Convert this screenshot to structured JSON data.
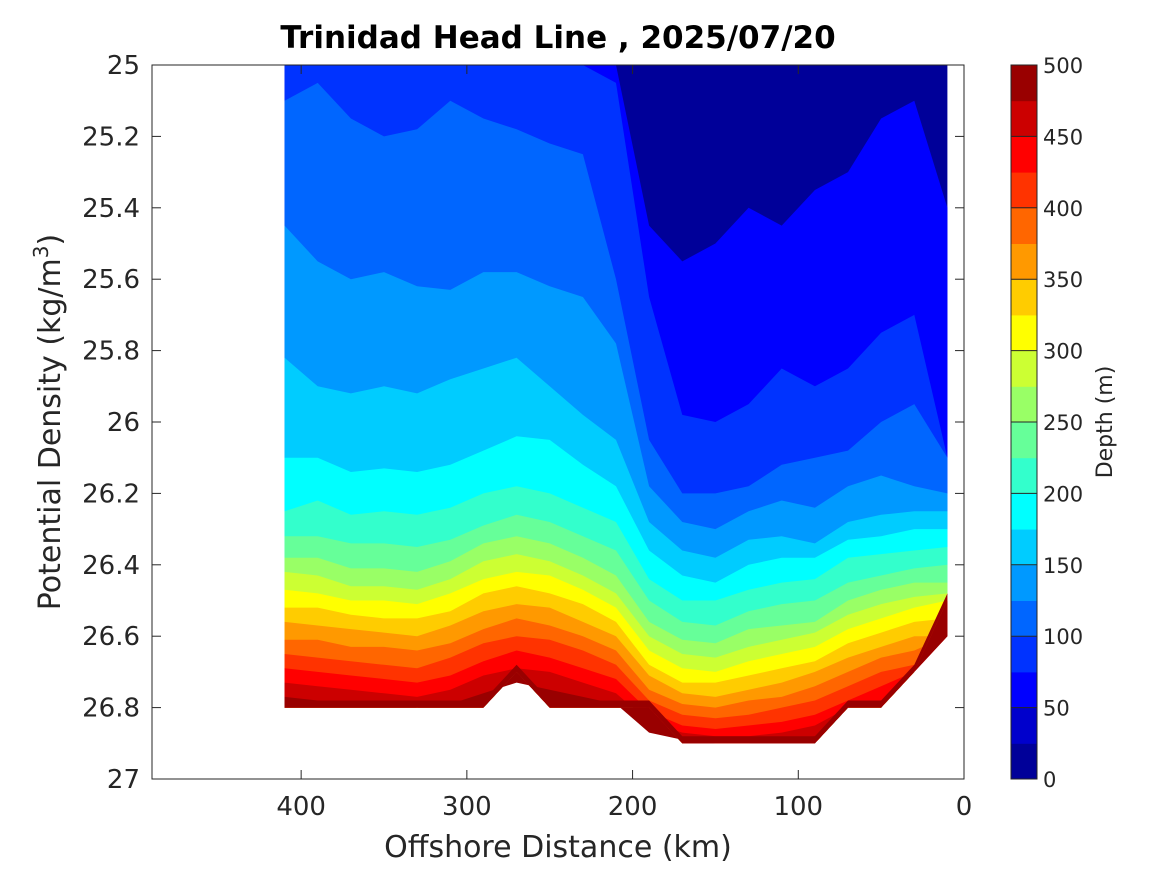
{
  "chart_data": {
    "type": "contour",
    "title": "Trinidad Head Line , 2025/07/20",
    "xlabel": "Offshore Distance (km)",
    "ylabel_main": "Potential Density (kg/m",
    "ylabel_sup": "3",
    "ylabel_close": ")",
    "colorbar_label": "Depth (m)",
    "xlim": [
      490,
      0
    ],
    "ylim": [
      27,
      25
    ],
    "x_reversed": true,
    "y_reversed": true,
    "x_ticks": [
      400,
      300,
      200,
      100,
      0
    ],
    "x_tick_labels": [
      "400",
      "300",
      "200",
      "100",
      "0"
    ],
    "y_ticks": [
      25,
      25.2,
      25.4,
      25.6,
      25.8,
      26,
      26.2,
      26.4,
      26.6,
      26.8,
      27
    ],
    "y_tick_labels": [
      "25",
      "25.2",
      "25.4",
      "25.6",
      "25.8",
      "26",
      "26.2",
      "26.4",
      "26.6",
      "26.8",
      "27"
    ],
    "colorbar_range": [
      0,
      500
    ],
    "colorbar_ticks": [
      0,
      50,
      100,
      150,
      200,
      250,
      300,
      350,
      400,
      450,
      500
    ],
    "colorbar_tick_labels": [
      "0",
      "50",
      "100",
      "150",
      "200",
      "250",
      "300",
      "350",
      "400",
      "450",
      "500"
    ],
    "contour_step": 25,
    "colormap": "jet",
    "stations_x": [
      410,
      390,
      370,
      350,
      330,
      310,
      290,
      270,
      250,
      230,
      210,
      190,
      170,
      150,
      130,
      110,
      90,
      70,
      50,
      30,
      10
    ],
    "density_bottom": [
      26.8,
      26.8,
      26.8,
      26.8,
      26.8,
      26.8,
      26.8,
      26.7,
      26.8,
      26.8,
      26.8,
      26.8,
      26.9,
      26.9,
      26.9,
      26.9,
      26.9,
      26.8,
      26.8,
      26.7,
      26.5
    ],
    "isopycnal_depth_levels": [
      50,
      75,
      100,
      125,
      150,
      175,
      200,
      225,
      250,
      275,
      300,
      325,
      350,
      375,
      400,
      425,
      450,
      475
    ],
    "isopycnal_densities": [
      [
        null,
        null,
        null,
        null,
        null,
        null,
        null,
        null,
        null,
        null,
        null,
        25.45,
        25.55,
        25.5,
        25.4,
        25.45,
        25.35,
        25.3,
        25.15,
        25.1,
        25.4
      ],
      [
        null,
        null,
        null,
        null,
        null,
        null,
        null,
        null,
        null,
        25.0,
        25.05,
        25.65,
        25.98,
        26.0,
        25.95,
        25.85,
        25.9,
        25.85,
        25.75,
        25.7,
        26.1
      ],
      [
        25.1,
        25.05,
        25.15,
        25.2,
        25.18,
        25.1,
        25.15,
        25.18,
        25.22,
        25.25,
        25.6,
        26.05,
        26.2,
        26.2,
        26.18,
        26.12,
        26.1,
        26.08,
        26.0,
        25.95,
        26.1
      ],
      [
        25.45,
        25.55,
        25.6,
        25.58,
        25.62,
        25.63,
        25.58,
        25.58,
        25.62,
        25.65,
        25.78,
        26.18,
        26.28,
        26.3,
        26.25,
        26.22,
        26.24,
        26.18,
        26.15,
        26.18,
        26.2
      ],
      [
        25.82,
        25.9,
        25.92,
        25.9,
        25.92,
        25.88,
        25.85,
        25.82,
        25.9,
        25.98,
        26.05,
        26.28,
        26.36,
        26.38,
        26.33,
        26.32,
        26.34,
        26.28,
        26.26,
        26.25,
        26.25
      ],
      [
        26.1,
        26.1,
        26.14,
        26.13,
        26.14,
        26.12,
        26.08,
        26.04,
        26.05,
        26.12,
        26.18,
        26.36,
        26.43,
        26.45,
        26.4,
        26.38,
        26.38,
        26.33,
        26.32,
        26.3,
        26.3
      ],
      [
        26.25,
        26.22,
        26.26,
        26.25,
        26.26,
        26.24,
        26.2,
        26.18,
        26.2,
        26.24,
        26.28,
        26.44,
        26.5,
        26.5,
        26.47,
        26.45,
        26.44,
        26.38,
        26.37,
        26.36,
        26.35
      ],
      [
        26.32,
        26.32,
        26.34,
        26.34,
        26.35,
        26.33,
        26.29,
        26.26,
        26.28,
        26.32,
        26.36,
        26.5,
        26.56,
        26.57,
        26.53,
        26.51,
        26.5,
        26.45,
        26.43,
        26.41,
        26.4
      ],
      [
        26.38,
        26.38,
        26.41,
        26.41,
        26.42,
        26.39,
        26.34,
        26.32,
        26.34,
        26.38,
        26.43,
        26.56,
        26.61,
        26.62,
        26.58,
        26.57,
        26.56,
        26.5,
        26.47,
        26.45,
        26.45
      ],
      [
        26.42,
        26.43,
        26.46,
        26.46,
        26.47,
        26.44,
        26.39,
        26.37,
        26.39,
        26.43,
        26.48,
        26.6,
        26.65,
        26.66,
        26.63,
        26.61,
        26.59,
        26.54,
        26.51,
        26.49,
        26.48
      ],
      [
        26.47,
        26.48,
        26.5,
        26.5,
        26.51,
        26.48,
        26.44,
        26.42,
        26.43,
        26.47,
        26.52,
        26.64,
        26.69,
        26.7,
        26.67,
        26.65,
        26.63,
        26.58,
        26.55,
        26.52,
        26.5
      ],
      [
        26.52,
        26.52,
        26.54,
        26.55,
        26.55,
        26.53,
        26.48,
        26.46,
        26.48,
        26.51,
        26.56,
        26.68,
        26.73,
        26.73,
        26.71,
        26.69,
        26.67,
        26.62,
        26.59,
        26.56,
        26.55
      ],
      [
        26.56,
        26.57,
        26.58,
        26.59,
        26.6,
        26.57,
        26.53,
        26.51,
        26.52,
        26.56,
        26.6,
        26.71,
        26.76,
        26.77,
        26.75,
        26.73,
        26.7,
        26.66,
        26.63,
        26.6,
        26.6
      ],
      [
        26.61,
        26.61,
        26.63,
        26.63,
        26.64,
        26.62,
        26.58,
        26.55,
        26.57,
        26.6,
        26.64,
        26.75,
        26.79,
        26.8,
        26.78,
        26.77,
        26.74,
        26.7,
        26.66,
        26.64,
        26.6
      ],
      [
        26.65,
        26.66,
        26.67,
        26.68,
        26.69,
        26.66,
        26.62,
        26.6,
        26.61,
        26.64,
        26.68,
        26.78,
        26.82,
        26.83,
        26.82,
        26.8,
        26.78,
        26.74,
        26.7,
        26.68,
        26.6
      ],
      [
        26.69,
        26.7,
        26.71,
        26.72,
        26.73,
        26.71,
        26.67,
        26.64,
        26.66,
        26.69,
        26.72,
        26.81,
        26.85,
        26.86,
        26.85,
        26.84,
        26.82,
        26.78,
        26.74,
        26.7,
        26.6
      ],
      [
        26.73,
        26.74,
        26.75,
        26.76,
        26.77,
        26.75,
        26.71,
        26.69,
        26.7,
        26.73,
        26.76,
        26.84,
        26.87,
        26.88,
        26.88,
        26.87,
        26.85,
        26.8,
        26.78,
        26.7,
        26.6
      ],
      [
        26.77,
        26.78,
        26.79,
        26.79,
        26.8,
        26.79,
        26.76,
        26.73,
        26.75,
        26.77,
        26.79,
        26.87,
        26.89,
        26.9,
        26.9,
        26.89,
        26.88,
        26.8,
        26.8,
        26.7,
        26.6
      ]
    ]
  }
}
